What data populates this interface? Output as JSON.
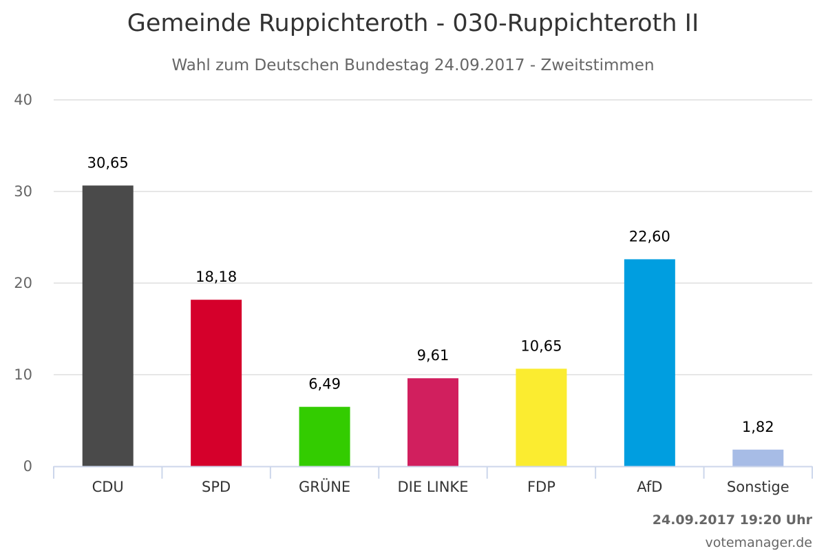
{
  "chart_data": {
    "type": "bar",
    "title": "Gemeinde Ruppichteroth - 030-Ruppichteroth II",
    "subtitle": "Wahl zum Deutschen Bundestag 24.09.2017 - Zweitstimmen",
    "categories": [
      "CDU",
      "SPD",
      "GRÜNE",
      "DIE LINKE",
      "FDP",
      "AfD",
      "Sonstige"
    ],
    "values": [
      30.65,
      18.18,
      6.49,
      9.61,
      10.65,
      22.6,
      1.82
    ],
    "value_labels": [
      "30,65",
      "18,18",
      "6,49",
      "9,61",
      "10,65",
      "22,60",
      "1,82"
    ],
    "colors": [
      "#4a4a4a",
      "#d5002b",
      "#33cc00",
      "#d11f5e",
      "#fbec30",
      "#009ee0",
      "#a7bce6"
    ],
    "ylim": [
      0,
      40
    ],
    "yticks": [
      0,
      10,
      20,
      30,
      40
    ],
    "ytick_labels": [
      "0",
      "10",
      "20",
      "30",
      "40"
    ],
    "xlabel": "",
    "ylabel": "",
    "grid": true,
    "legend": "none"
  },
  "footer": {
    "timestamp": "24.09.2017 19:20 Uhr",
    "source": "votemanager.de"
  }
}
